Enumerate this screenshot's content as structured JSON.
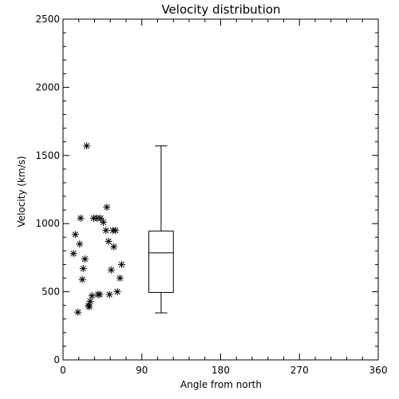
{
  "colors": {
    "foreground": "#000000",
    "background": "#ffffff"
  },
  "chart_data": {
    "type": "scatter",
    "title": "Velocity distribution",
    "xlabel": "Angle from north",
    "ylabel": "Velocity (km/s)",
    "xlim": [
      0,
      360
    ],
    "ylim": [
      0,
      2500
    ],
    "xticks": [
      0,
      90,
      180,
      270,
      360
    ],
    "yticks": [
      0,
      500,
      1000,
      1500,
      2000,
      2500
    ],
    "x_minor_step": 18,
    "y_minor_step": 100,
    "marker": "asterisk",
    "grid": false,
    "points": [
      {
        "x": 27,
        "y": 1570
      },
      {
        "x": 50,
        "y": 1120
      },
      {
        "x": 20,
        "y": 1040
      },
      {
        "x": 35,
        "y": 1040
      },
      {
        "x": 39,
        "y": 1040
      },
      {
        "x": 43,
        "y": 1040
      },
      {
        "x": 46,
        "y": 1010
      },
      {
        "x": 49,
        "y": 950
      },
      {
        "x": 57,
        "y": 950
      },
      {
        "x": 60,
        "y": 950
      },
      {
        "x": 14,
        "y": 920
      },
      {
        "x": 52,
        "y": 870
      },
      {
        "x": 19,
        "y": 850
      },
      {
        "x": 58,
        "y": 830
      },
      {
        "x": 12,
        "y": 780
      },
      {
        "x": 25,
        "y": 740
      },
      {
        "x": 67,
        "y": 700
      },
      {
        "x": 23,
        "y": 670
      },
      {
        "x": 55,
        "y": 660
      },
      {
        "x": 65,
        "y": 600
      },
      {
        "x": 22,
        "y": 590
      },
      {
        "x": 62,
        "y": 500
      },
      {
        "x": 53,
        "y": 480
      },
      {
        "x": 40,
        "y": 480
      },
      {
        "x": 42,
        "y": 480
      },
      {
        "x": 33,
        "y": 470
      },
      {
        "x": 31,
        "y": 430
      },
      {
        "x": 29,
        "y": 400
      },
      {
        "x": 30,
        "y": 390
      },
      {
        "x": 17,
        "y": 350
      }
    ],
    "boxplot": {
      "x": 112,
      "width": 28,
      "min": 345,
      "q1": 495,
      "median": 785,
      "q3": 945,
      "max": 1570
    }
  }
}
